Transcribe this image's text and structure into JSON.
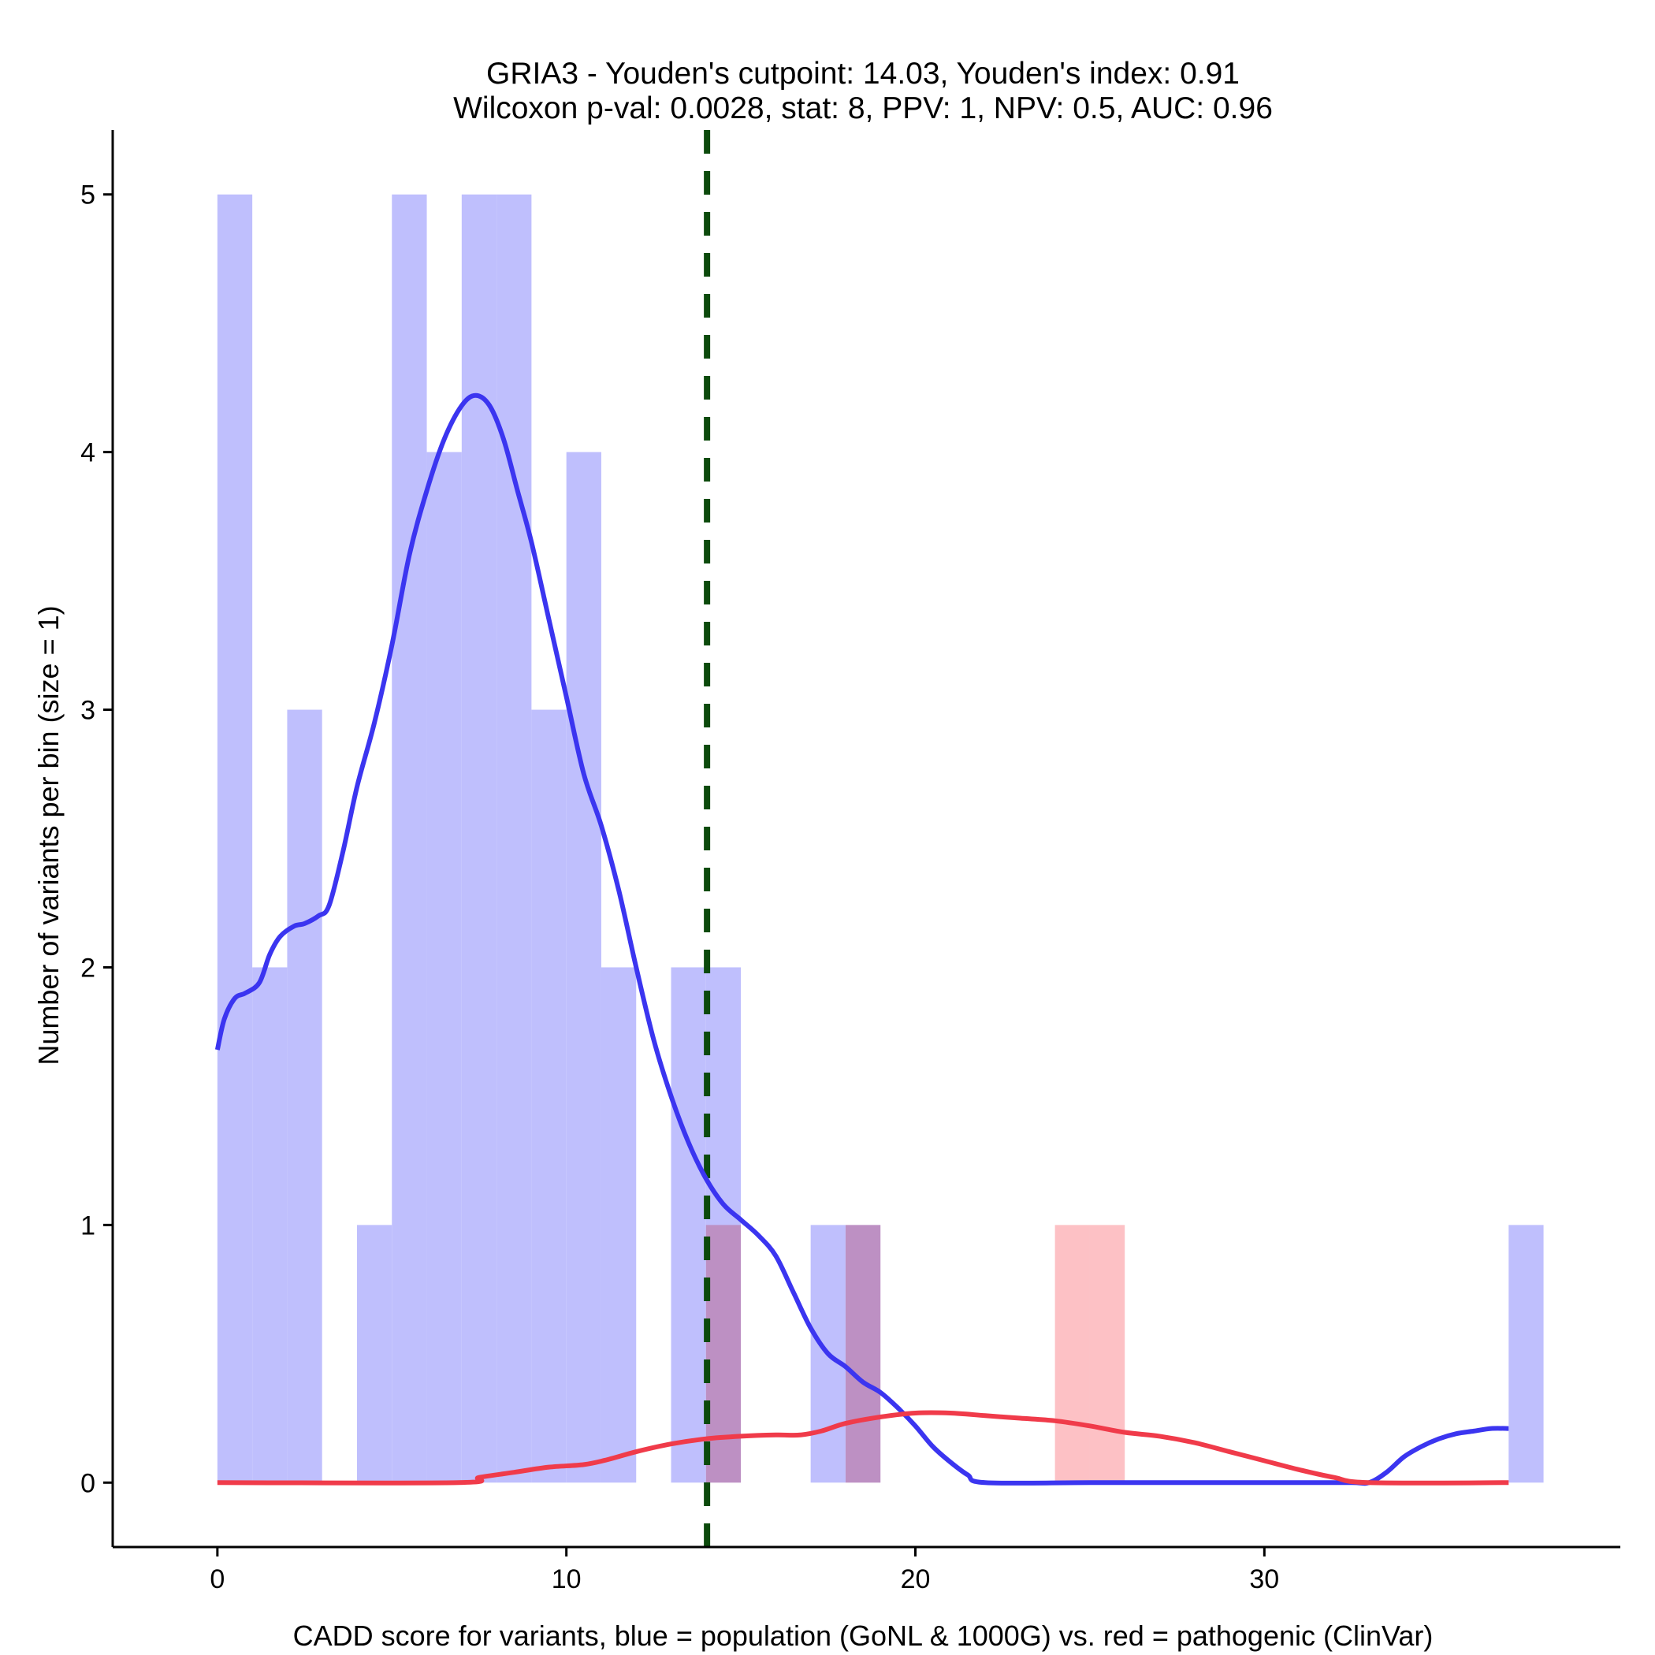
{
  "chart_data": {
    "type": "bar",
    "title_line1": "GRIA3 - Youden's cutpoint: 14.03, Youden's index: 0.91",
    "title_line2": "Wilcoxon p-val: 0.0028, stat: 8, PPV: 1, NPV: 0.5, AUC: 0.96",
    "xlabel": "CADD score for variants, blue = population (GoNL & 1000G) vs. red = pathogenic (ClinVar)",
    "ylabel": "Number of variants per bin (size = 1)",
    "xlim": [
      -3,
      40.2
    ],
    "ylim": [
      -0.25,
      5.25
    ],
    "x_ticks": [
      0,
      10,
      20,
      30
    ],
    "x_tick_labels": [
      "0",
      "10",
      "20",
      "30"
    ],
    "y_ticks": [
      0,
      1,
      2,
      3,
      4,
      5
    ],
    "y_tick_labels": [
      "0",
      "1",
      "2",
      "3",
      "4",
      "5"
    ],
    "bin_size": 1,
    "cutpoint": 14.03,
    "colors": {
      "population_bar": "#bfbffd",
      "pathogenic_bar": "#fdbfc3",
      "population_line": "#3b35f0",
      "pathogenic_line": "#f03b4a",
      "cutpoint_line": "#0c4a0c"
    },
    "series": [
      {
        "name": "population (GoNL & 1000G)",
        "bins": [
          [
            0,
            5
          ],
          [
            1,
            2
          ],
          [
            2,
            3
          ],
          [
            4,
            1
          ],
          [
            5,
            5
          ],
          [
            6,
            4
          ],
          [
            7,
            5
          ],
          [
            8,
            5
          ],
          [
            9,
            3
          ],
          [
            10,
            4
          ],
          [
            11,
            2
          ],
          [
            13,
            2
          ],
          [
            14,
            2
          ],
          [
            17,
            1
          ],
          [
            18,
            1
          ],
          [
            37,
            1
          ]
        ],
        "density": [
          [
            0,
            1.68
          ],
          [
            0.2,
            1.8
          ],
          [
            0.5,
            1.88
          ],
          [
            0.8,
            1.9
          ],
          [
            1.2,
            1.94
          ],
          [
            1.5,
            2.05
          ],
          [
            1.8,
            2.12
          ],
          [
            2.2,
            2.16
          ],
          [
            2.5,
            2.17
          ],
          [
            2.9,
            2.2
          ],
          [
            3.2,
            2.24
          ],
          [
            3.6,
            2.45
          ],
          [
            4.0,
            2.7
          ],
          [
            4.5,
            2.95
          ],
          [
            5.0,
            3.25
          ],
          [
            5.5,
            3.6
          ],
          [
            6.0,
            3.85
          ],
          [
            6.5,
            4.05
          ],
          [
            7.0,
            4.18
          ],
          [
            7.4,
            4.22
          ],
          [
            7.8,
            4.18
          ],
          [
            8.2,
            4.05
          ],
          [
            8.6,
            3.85
          ],
          [
            9.0,
            3.65
          ],
          [
            9.5,
            3.35
          ],
          [
            10.0,
            3.05
          ],
          [
            10.5,
            2.75
          ],
          [
            11.0,
            2.55
          ],
          [
            11.5,
            2.3
          ],
          [
            12.0,
            2.0
          ],
          [
            12.5,
            1.72
          ],
          [
            13.0,
            1.5
          ],
          [
            13.5,
            1.32
          ],
          [
            14.0,
            1.18
          ],
          [
            14.5,
            1.08
          ],
          [
            15.0,
            1.02
          ],
          [
            15.5,
            0.96
          ],
          [
            16.0,
            0.88
          ],
          [
            16.5,
            0.74
          ],
          [
            17.0,
            0.6
          ],
          [
            17.5,
            0.5
          ],
          [
            18.0,
            0.45
          ],
          [
            18.5,
            0.39
          ],
          [
            19.0,
            0.35
          ],
          [
            19.5,
            0.29
          ],
          [
            20.0,
            0.22
          ],
          [
            20.5,
            0.14
          ],
          [
            21.0,
            0.08
          ],
          [
            21.5,
            0.03
          ],
          [
            22.0,
            0
          ],
          [
            25.0,
            0
          ],
          [
            28.0,
            0
          ],
          [
            31.0,
            0
          ],
          [
            32.5,
            0
          ],
          [
            33.0,
            0
          ],
          [
            33.5,
            0.04
          ],
          [
            34.0,
            0.1
          ],
          [
            34.5,
            0.14
          ],
          [
            35.0,
            0.17
          ],
          [
            35.5,
            0.19
          ],
          [
            36.0,
            0.2
          ],
          [
            36.5,
            0.21
          ],
          [
            37.0,
            0.21
          ]
        ]
      },
      {
        "name": "pathogenic (ClinVar)",
        "bins": [
          [
            14,
            1
          ],
          [
            18,
            1
          ],
          [
            24,
            1
          ],
          [
            25,
            1
          ]
        ],
        "density": [
          [
            0,
            0
          ],
          [
            6.9,
            0
          ],
          [
            7.5,
            0.02
          ],
          [
            8.5,
            0.04
          ],
          [
            9.5,
            0.06
          ],
          [
            10.5,
            0.07
          ],
          [
            11.2,
            0.09
          ],
          [
            12.0,
            0.12
          ],
          [
            13.0,
            0.15
          ],
          [
            14.0,
            0.17
          ],
          [
            15.0,
            0.18
          ],
          [
            16.0,
            0.185
          ],
          [
            16.7,
            0.185
          ],
          [
            17.3,
            0.2
          ],
          [
            18.0,
            0.23
          ],
          [
            19.0,
            0.255
          ],
          [
            20.0,
            0.27
          ],
          [
            21.0,
            0.27
          ],
          [
            22.0,
            0.26
          ],
          [
            23.0,
            0.25
          ],
          [
            24.0,
            0.24
          ],
          [
            25.0,
            0.22
          ],
          [
            26.0,
            0.195
          ],
          [
            27.0,
            0.18
          ],
          [
            28.0,
            0.155
          ],
          [
            29.0,
            0.12
          ],
          [
            30.0,
            0.085
          ],
          [
            31.0,
            0.05
          ],
          [
            32.0,
            0.02
          ],
          [
            33.0,
            0
          ],
          [
            37.0,
            0
          ]
        ]
      }
    ]
  }
}
